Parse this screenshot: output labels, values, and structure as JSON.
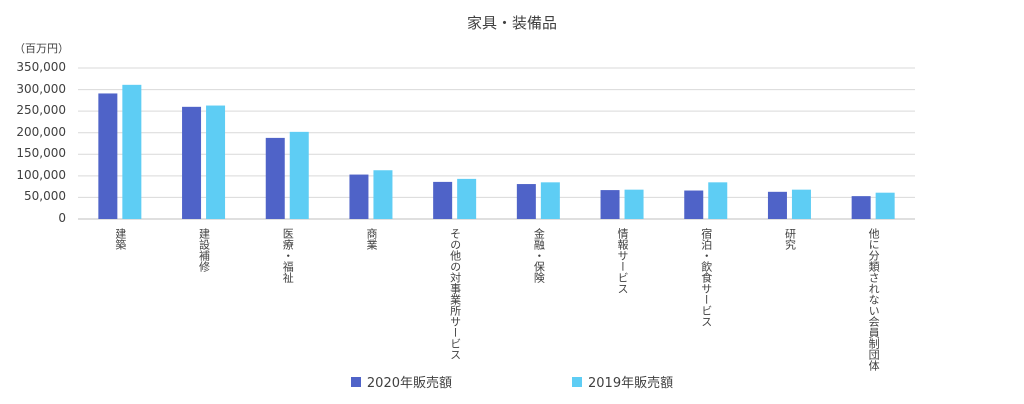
{
  "chart_data": {
    "type": "bar",
    "title": "家具・装備品",
    "ylabel": "（百万円）",
    "ylim": [
      0,
      350000
    ],
    "yticks": [
      "0",
      "50,000",
      "100,000",
      "150,000",
      "200,000",
      "250,000",
      "300,000",
      "350,000"
    ],
    "categories": [
      "建築",
      "建設補修",
      "医療・福祉",
      "商業",
      "その他の対事業所サービス",
      "金融・保険",
      "情報サービス",
      "宿泊・飲食サービス",
      "研究",
      "他に分類されない会員制団体"
    ],
    "series": [
      {
        "name": "2020年販売額",
        "color": "#4f63c8",
        "values": [
          291000,
          260000,
          188000,
          103000,
          86000,
          81000,
          67000,
          66000,
          63000,
          53000
        ]
      },
      {
        "name": "2019年販売額",
        "color": "#5ecdf4",
        "values": [
          311000,
          263000,
          202000,
          113000,
          93000,
          85000,
          68000,
          85000,
          68000,
          61000
        ]
      }
    ],
    "grid": true,
    "legend": "bottom"
  }
}
